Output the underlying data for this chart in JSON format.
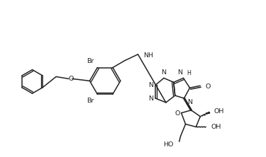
{
  "bg_color": "#ffffff",
  "line_color": "#222222",
  "line_width": 1.1,
  "font_size": 6.8,
  "small_font_size": 5.8
}
